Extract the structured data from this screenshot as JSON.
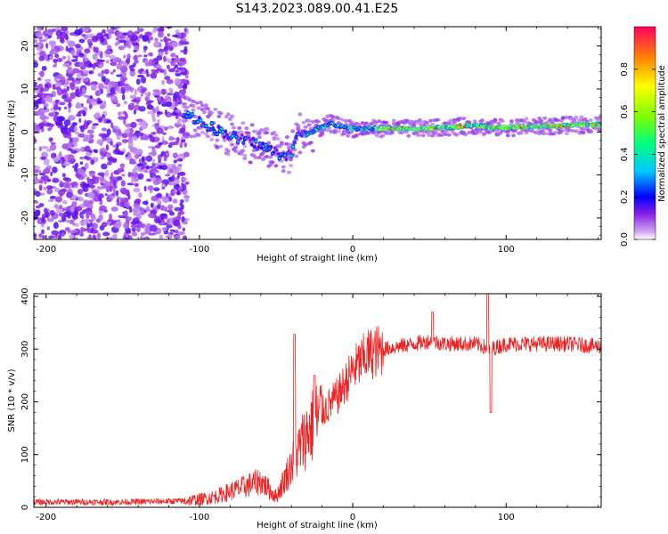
{
  "title": "S143.2023.089.00.41.E25",
  "chart_data": [
    {
      "type": "heatmap",
      "xlabel": "Height of straight line (km)",
      "ylabel": "Frequency (Hz)",
      "xlim": [
        -208,
        162
      ],
      "ylim": [
        -25,
        24.5
      ],
      "xticks": [
        -200,
        -100,
        0,
        100
      ],
      "yticks": [
        -20,
        -10,
        0,
        10,
        20
      ],
      "colorbar": {
        "label": "Normalized spectral amplitude",
        "range": [
          0,
          1
        ],
        "ticks": [
          0.0,
          0.2,
          0.4,
          0.6,
          0.8
        ],
        "colormap": "rainbow"
      },
      "ridge": {
        "x": [
          -115,
          -105,
          -95,
          -85,
          -75,
          -65,
          -55,
          -45,
          -40,
          -35,
          -30,
          -25,
          -20,
          -15,
          -10,
          -5,
          0,
          20,
          40,
          60,
          80,
          90,
          100,
          110,
          120,
          140,
          162
        ],
        "y": [
          4.5,
          3.5,
          1.5,
          0,
          -1.5,
          -2.5,
          -4,
          -5.5,
          -5,
          0,
          -0.5,
          0.5,
          1,
          2,
          1.5,
          1,
          0.8,
          0.8,
          0.8,
          1,
          1.5,
          1,
          1,
          1.2,
          1.3,
          1.5,
          1.8
        ]
      },
      "noise_region_xmax": -110
    },
    {
      "type": "line",
      "xlabel": "Height of straight line (km)",
      "ylabel": "SNR (10 * v/v)",
      "xlim": [
        -208,
        162
      ],
      "ylim": [
        0,
        405
      ],
      "xticks": [
        -200,
        -100,
        0,
        100
      ],
      "yticks": [
        0,
        100,
        200,
        300,
        400
      ],
      "series": [
        {
          "color": "#ee2222",
          "x": [
            -208,
            -150,
            -110,
            -100,
            -90,
            -80,
            -70,
            -60,
            -50,
            -40,
            -30,
            -20,
            -10,
            0,
            10,
            20,
            30,
            40,
            50,
            60,
            70,
            80,
            90,
            100,
            120,
            140,
            162
          ],
          "y": [
            10,
            10,
            12,
            15,
            20,
            30,
            40,
            50,
            20,
            80,
            140,
            180,
            210,
            260,
            290,
            300,
            305,
            310,
            315,
            310,
            310,
            310,
            300,
            310,
            310,
            310,
            305
          ],
          "spikes": [
            {
              "x": -38,
              "y": 328
            },
            {
              "x": -25,
              "y": 250
            },
            {
              "x": 52,
              "y": 370
            },
            {
              "x": 88,
              "y": 405
            },
            {
              "x": 90,
              "y": 180
            }
          ]
        }
      ]
    }
  ]
}
